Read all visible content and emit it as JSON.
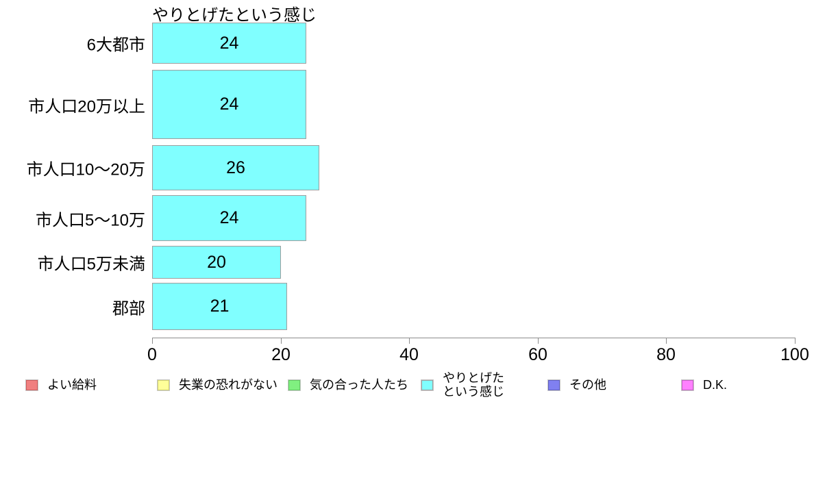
{
  "chart_data": {
    "type": "bar",
    "orientation": "horizontal",
    "title": "やりとげたという感じ",
    "categories": [
      "6大都市",
      "市人口20万以上",
      "市人口10〜20万",
      "市人口5〜10万",
      "市人口5万未満",
      "郡部"
    ],
    "values": [
      24,
      24,
      26,
      24,
      20,
      21
    ],
    "value_labels": [
      "24",
      "24",
      "26",
      "24",
      "20",
      "21"
    ],
    "xlabel": "",
    "ylabel": "",
    "xlim": [
      0,
      100
    ],
    "xticks": [
      0,
      20,
      40,
      60,
      80,
      100
    ],
    "grid": false,
    "bar_fill": "#80ffff",
    "bar_border": "#9e9e9e",
    "axis_color": "#8c8c8c",
    "legend_position": "bottom",
    "legend": [
      {
        "label": "よい給料",
        "fill": "#f08080",
        "border": "#cd5c5c"
      },
      {
        "label": "失業の恐れがない",
        "fill": "#ffff99",
        "border": "#cfcf70"
      },
      {
        "label": "気の合った人たち",
        "fill": "#80f080",
        "border": "#62c962"
      },
      {
        "label": "やりとげた\nという感じ",
        "fill": "#80ffff",
        "border": "#9e9e9e"
      },
      {
        "label": "その他",
        "fill": "#8080f0",
        "border": "#6060c0"
      },
      {
        "label": "D.K.",
        "fill": "#ff80ff",
        "border": "#c060c0"
      }
    ]
  }
}
